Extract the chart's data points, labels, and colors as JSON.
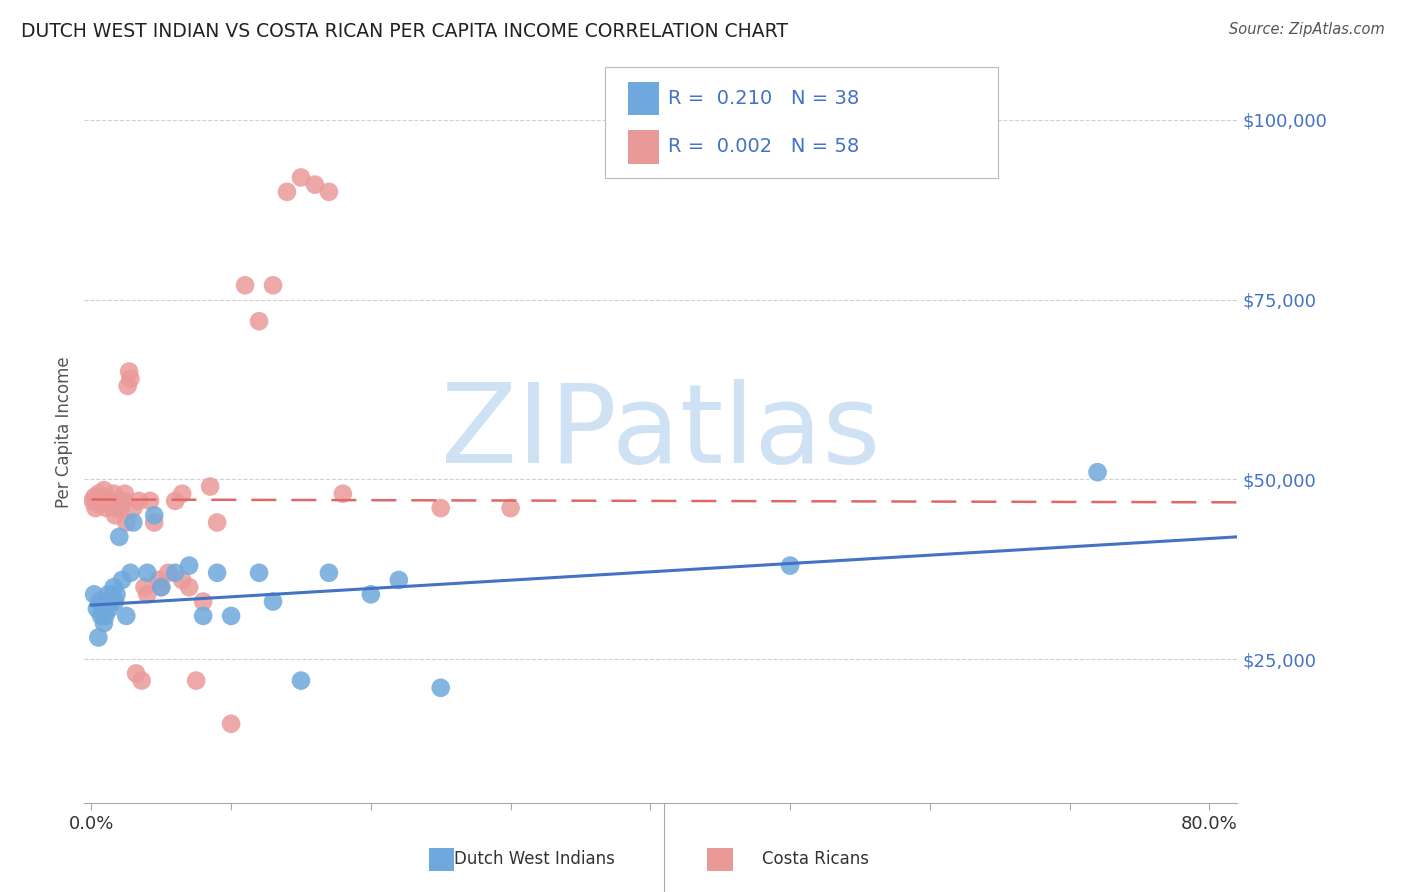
{
  "title": "DUTCH WEST INDIAN VS COSTA RICAN PER CAPITA INCOME CORRELATION CHART",
  "source": "Source: ZipAtlas.com",
  "ylabel": "Per Capita Income",
  "ytick_labels": [
    "$25,000",
    "$50,000",
    "$75,000",
    "$100,000"
  ],
  "ytick_values": [
    25000,
    50000,
    75000,
    100000
  ],
  "ylim": [
    5000,
    108000
  ],
  "xlim": [
    -0.005,
    0.82
  ],
  "blue_color": "#6fa8dc",
  "pink_color": "#ea9999",
  "blue_line_color": "#4472c4",
  "pink_line_color": "#e06666",
  "watermark_color": "#cfe2f3",
  "grid_color": "#cccccc",
  "R_blue": 0.21,
  "N_blue": 38,
  "R_pink": 0.002,
  "N_pink": 58,
  "blue_scatter_x": [
    0.002,
    0.004,
    0.005,
    0.006,
    0.007,
    0.008,
    0.009,
    0.01,
    0.011,
    0.012,
    0.013,
    0.014,
    0.015,
    0.016,
    0.017,
    0.018,
    0.02,
    0.022,
    0.025,
    0.028,
    0.03,
    0.04,
    0.045,
    0.05,
    0.06,
    0.07,
    0.08,
    0.09,
    0.1,
    0.12,
    0.13,
    0.15,
    0.17,
    0.2,
    0.22,
    0.25,
    0.5,
    0.72
  ],
  "blue_scatter_y": [
    34000,
    32000,
    28000,
    33000,
    31000,
    32000,
    30000,
    31000,
    33000,
    34000,
    32000,
    33000,
    34000,
    35000,
    33000,
    34000,
    42000,
    36000,
    31000,
    37000,
    44000,
    37000,
    45000,
    35000,
    37000,
    38000,
    31000,
    37000,
    31000,
    37000,
    33000,
    22000,
    37000,
    34000,
    36000,
    21000,
    38000,
    51000
  ],
  "pink_scatter_x": [
    0.001,
    0.002,
    0.003,
    0.004,
    0.005,
    0.006,
    0.007,
    0.008,
    0.009,
    0.01,
    0.011,
    0.012,
    0.013,
    0.014,
    0.015,
    0.016,
    0.017,
    0.018,
    0.019,
    0.02,
    0.021,
    0.022,
    0.023,
    0.024,
    0.025,
    0.026,
    0.027,
    0.028,
    0.03,
    0.032,
    0.034,
    0.036,
    0.038,
    0.04,
    0.042,
    0.045,
    0.048,
    0.05,
    0.055,
    0.06,
    0.065,
    0.07,
    0.075,
    0.08,
    0.085,
    0.09,
    0.1,
    0.11,
    0.12,
    0.13,
    0.14,
    0.15,
    0.16,
    0.17,
    0.18,
    0.25,
    0.065,
    0.3
  ],
  "pink_scatter_y": [
    47000,
    47500,
    46000,
    47000,
    48000,
    46500,
    47500,
    47000,
    48500,
    47000,
    46000,
    47000,
    46500,
    47000,
    47000,
    48000,
    45000,
    46000,
    47000,
    47000,
    46000,
    47000,
    47000,
    48000,
    44000,
    63000,
    65000,
    64000,
    46000,
    23000,
    47000,
    22000,
    35000,
    34000,
    47000,
    44000,
    36000,
    35000,
    37000,
    47000,
    36000,
    35000,
    22000,
    33000,
    49000,
    44000,
    16000,
    77000,
    72000,
    77000,
    90000,
    92000,
    91000,
    90000,
    48000,
    46000,
    48000,
    46000
  ],
  "blue_line_x": [
    0.0,
    0.82
  ],
  "blue_line_y": [
    32500,
    42000
  ],
  "pink_line_x": [
    0.0,
    0.82
  ],
  "pink_line_y": [
    47200,
    46800
  ],
  "background_color": "#ffffff",
  "title_color": "#222222",
  "axis_label_color": "#555555",
  "ytick_color": "#4472c4",
  "source_color": "#555555",
  "xtick_color": "#333333"
}
